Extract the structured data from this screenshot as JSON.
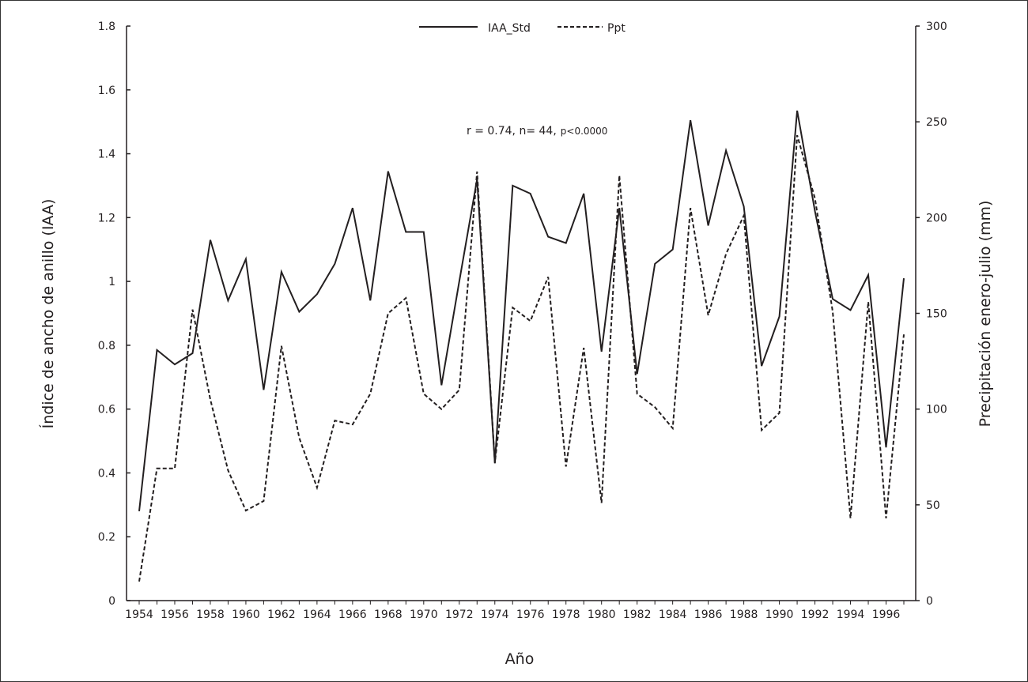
{
  "chart_data": {
    "type": "line",
    "title": "",
    "xlabel": "Año",
    "ylabel_left": "Índice de ancho de anillo (IAA)",
    "ylabel_right": "Precipitación enero-julio (mm)",
    "annotation_main": "r = 0.74, n= 44,",
    "annotation_p": "p<0.0000",
    "legend_position": "top-center",
    "grid": false,
    "x": [
      1954,
      1955,
      1956,
      1957,
      1958,
      1959,
      1960,
      1961,
      1962,
      1963,
      1964,
      1965,
      1966,
      1967,
      1968,
      1969,
      1970,
      1971,
      1972,
      1973,
      1974,
      1975,
      1976,
      1977,
      1978,
      1979,
      1980,
      1981,
      1982,
      1983,
      1984,
      1985,
      1986,
      1987,
      1988,
      1989,
      1990,
      1991,
      1992,
      1993,
      1994,
      1995,
      1996,
      1997
    ],
    "xlim": [
      1954,
      1997
    ],
    "x_tick_labels": [
      "1954",
      "1956",
      "1958",
      "1960",
      "1962",
      "1964",
      "1966",
      "1968",
      "1970",
      "1972",
      "1974",
      "1976",
      "1978",
      "1980",
      "1982",
      "1984",
      "1986",
      "1988",
      "1990",
      "1992",
      "1994",
      "1996"
    ],
    "ylim_left": [
      0,
      1.8
    ],
    "y_left_tick_labels": [
      "0",
      "0.2",
      "0.4",
      "0.6",
      "0.8",
      "1",
      "1.2",
      "1.4",
      "1.6",
      "1.8"
    ],
    "ylim_right": [
      0,
      300
    ],
    "y_right_tick_labels": [
      "0",
      "50",
      "100",
      "150",
      "200",
      "250",
      "300"
    ],
    "series": [
      {
        "name": "IAA_Std",
        "axis": "left",
        "style": "solid",
        "values": [
          0.28,
          0.785,
          0.74,
          0.775,
          1.13,
          0.94,
          1.07,
          0.66,
          1.03,
          0.905,
          0.96,
          1.055,
          1.23,
          0.94,
          1.345,
          1.155,
          1.155,
          0.675,
          1.0,
          1.32,
          0.43,
          1.3,
          1.275,
          1.14,
          1.12,
          1.275,
          0.78,
          1.23,
          0.71,
          1.055,
          1.1,
          1.505,
          1.175,
          1.41,
          1.235,
          0.735,
          0.89,
          1.535,
          1.22,
          0.945,
          0.91,
          1.02,
          0.48,
          1.01
        ]
      },
      {
        "name": "Ppt",
        "axis": "right",
        "style": "dashed",
        "values": [
          10,
          69,
          69,
          152,
          105,
          68,
          47,
          52,
          133,
          85,
          59,
          94,
          92,
          108,
          150,
          158,
          108,
          100,
          110,
          224,
          72,
          153,
          146,
          169,
          70,
          132,
          51,
          222,
          108,
          101,
          90,
          205,
          149,
          181,
          201,
          89,
          98,
          243,
          210,
          151,
          43,
          156,
          43,
          139
        ]
      }
    ],
    "colors": {
      "line": "#231f20",
      "background": "#ffffff"
    }
  }
}
